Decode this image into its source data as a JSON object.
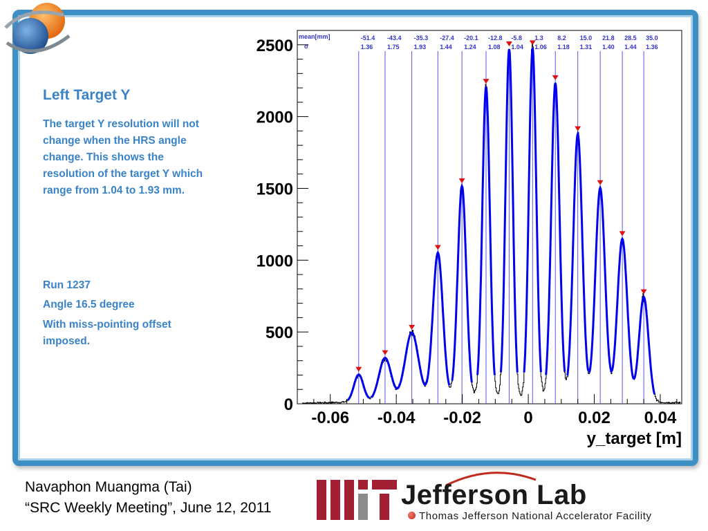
{
  "slide": {
    "title": "Left Target Y",
    "description": " The target Y resolution will not change when the HRS angle change. This shows the resolution of the target Y which range from 1.04 to 1.93 mm.",
    "run": "Run 1237",
    "angle": "Angle 16.5 degree",
    "offset_note": "With miss-pointing offset imposed."
  },
  "footer": {
    "author": "Navaphon Muangma (Tai)",
    "meeting": "“SRC Weekly Meeting”, June 12, 2011"
  },
  "logos": {
    "jlab_name": "Jefferson Lab",
    "jlab_subtitle": "Thomas Jefferson National Accelerator Facility",
    "mit_icon": "mit-logo",
    "globe_icon": "globe-logo"
  },
  "colors": {
    "accent": "#3a83c6",
    "fit": "#0000ee",
    "marker": "#dd1111",
    "peak_line": "#5555ee",
    "stat_text": "#3333cc",
    "mit_red": "#a31f34",
    "mit_gray": "#8a8b8c"
  },
  "chart_data": {
    "type": "line",
    "title": "",
    "xlabel": "y_target [m]",
    "ylabel": "",
    "xlim": [
      -0.07,
      0.0465
    ],
    "ylim": [
      0,
      2600
    ],
    "x_ticks": [
      "-0.06",
      "-0.04",
      "-0.02",
      "0",
      "0.02",
      "0.04"
    ],
    "x_tick_values": [
      -0.06,
      -0.04,
      -0.02,
      0,
      0.02,
      0.04
    ],
    "y_ticks": [
      "0",
      "500",
      "1000",
      "1500",
      "2000",
      "2500"
    ],
    "y_tick_values": [
      0,
      500,
      1000,
      1500,
      2000,
      2500
    ],
    "stat_header_mean": "mean[mm]",
    "stat_header_sigma": "σ",
    "peaks": [
      {
        "mean": -51.4,
        "sigma": 1.36,
        "mean_label": "-51.4",
        "sigma_label": "1.36",
        "height": 190
      },
      {
        "mean": -43.4,
        "sigma": 1.75,
        "mean_label": "-43.4",
        "sigma_label": "1.75",
        "height": 300
      },
      {
        "mean": -35.3,
        "sigma": 1.93,
        "mean_label": "-35.3",
        "sigma_label": "1.93",
        "height": 470
      },
      {
        "mean": -27.4,
        "sigma": 1.44,
        "mean_label": "-27.4",
        "sigma_label": "1.44",
        "height": 1020
      },
      {
        "mean": -20.1,
        "sigma": 1.24,
        "mean_label": "-20.1",
        "sigma_label": "1.24",
        "height": 1480
      },
      {
        "mean": -12.8,
        "sigma": 1.08,
        "mean_label": "-12.8",
        "sigma_label": "1.08",
        "height": 2170
      },
      {
        "mean": -5.8,
        "sigma": 1.04,
        "mean_label": "-5.8",
        "sigma_label": "1.04",
        "height": 2430
      },
      {
        "mean": 1.3,
        "sigma": 1.06,
        "mean_label": "1.3",
        "sigma_label": "1.06",
        "height": 2440
      },
      {
        "mean": 8.2,
        "sigma": 1.18,
        "mean_label": "8.2",
        "sigma_label": "1.18",
        "height": 2200
      },
      {
        "mean": 15.0,
        "sigma": 1.31,
        "mean_label": "15.0",
        "sigma_label": "1.31",
        "height": 1850
      },
      {
        "mean": 21.8,
        "sigma": 1.4,
        "mean_label": "21.8",
        "sigma_label": "1.40",
        "height": 1480
      },
      {
        "mean": 28.5,
        "sigma": 1.44,
        "mean_label": "28.5",
        "sigma_label": "1.44",
        "height": 1130
      },
      {
        "mean": 35.0,
        "sigma": 1.36,
        "mean_label": "35.0",
        "sigma_label": "1.36",
        "height": 730
      }
    ],
    "background_level": 40,
    "grid": false,
    "legend": "none"
  }
}
